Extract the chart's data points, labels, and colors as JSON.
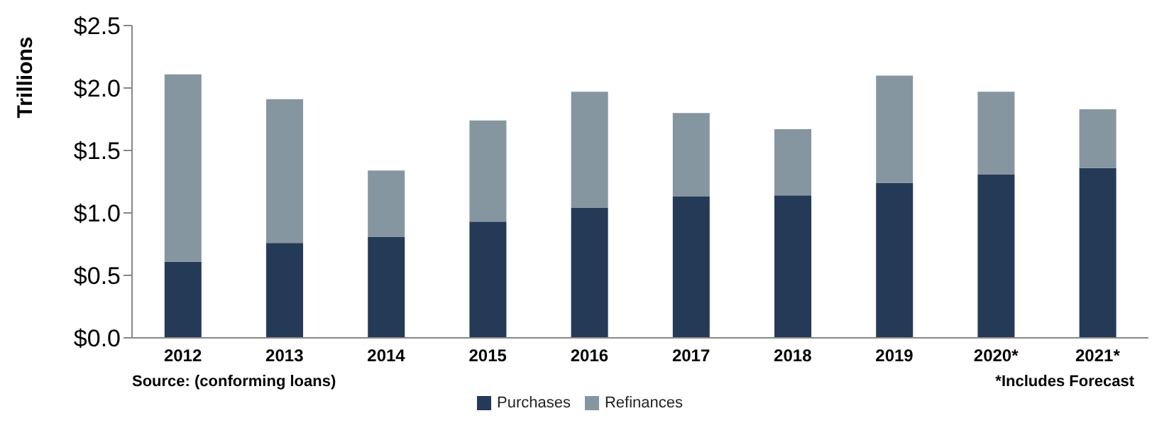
{
  "chart_data": {
    "type": "bar",
    "stacked": true,
    "ylabel": "Trillions",
    "categories": [
      "2012",
      "2013",
      "2014",
      "2015",
      "2016",
      "2017",
      "2018",
      "2019",
      "2020*",
      "2021*"
    ],
    "series": [
      {
        "name": "Purchases",
        "color": "#243a56",
        "values": [
          0.61,
          0.76,
          0.81,
          0.93,
          1.04,
          1.13,
          1.14,
          1.24,
          1.31,
          1.36
        ]
      },
      {
        "name": "Refinances",
        "color": "#8596a0",
        "values": [
          1.5,
          1.15,
          0.53,
          0.81,
          0.93,
          0.67,
          0.53,
          0.86,
          0.66,
          0.47
        ]
      }
    ],
    "ylim": [
      0,
      2.5
    ],
    "yticks": [
      {
        "value": 0,
        "label": "$0.0"
      },
      {
        "value": 0.5,
        "label": "$0.5"
      },
      {
        "value": 1,
        "label": "$1.0"
      },
      {
        "value": 1.5,
        "label": "$1.5"
      },
      {
        "value": 2,
        "label": "$2.0"
      },
      {
        "value": 2.5,
        "label": "$2.5"
      }
    ],
    "legend": "bottom",
    "annotations": [
      "Source: (conforming loans)",
      "*Includes Forecast"
    ]
  }
}
